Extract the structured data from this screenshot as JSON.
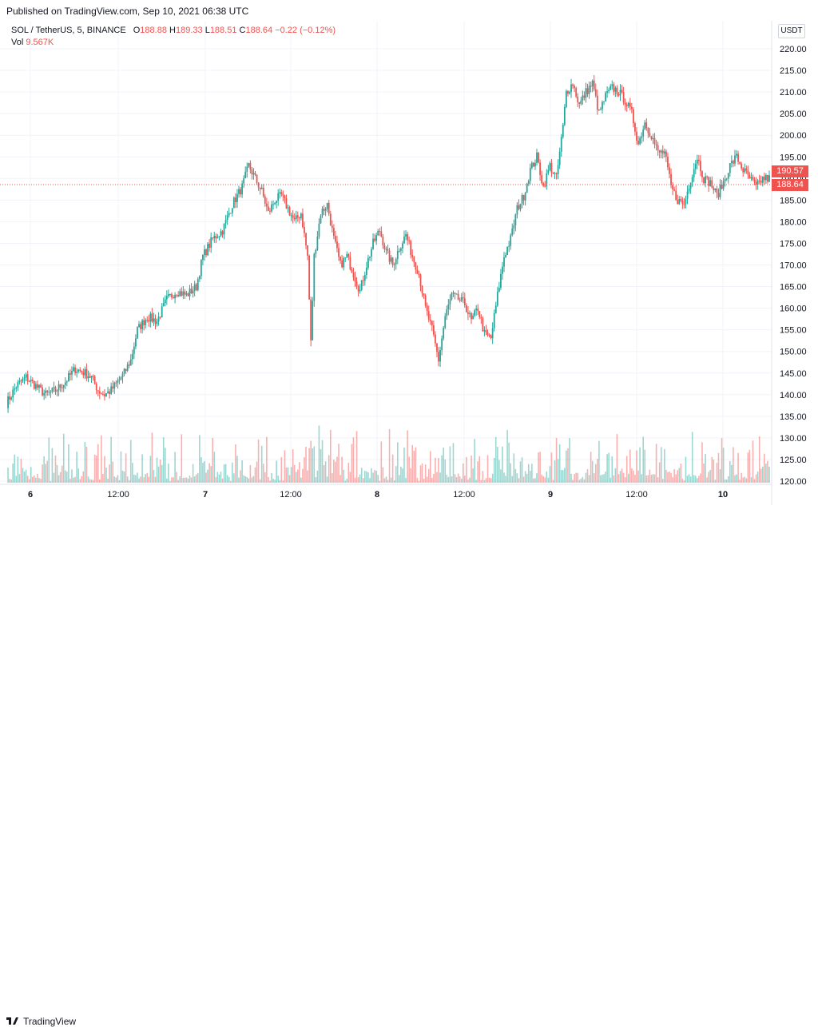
{
  "header": {
    "published": "Published on TradingView.com, Sep 10, 2021 06:38 UTC"
  },
  "legend": {
    "symbol": "SOL / TetherUS, 5, BINANCE",
    "o_label": "O",
    "o_value": "188.88",
    "h_label": "H",
    "h_value": "189.33",
    "l_label": "L",
    "l_value": "188.51",
    "c_label": "C",
    "c_value": "188.64",
    "change": "−0.22 (−0.12%)",
    "vol_label": "Vol",
    "vol_value": "9.567K"
  },
  "currency": "USDT",
  "tags": {
    "last_price": "188.64",
    "line_price": "190.57"
  },
  "brand": "TradingView",
  "colors": {
    "up": "#26a69a",
    "down": "#ef5350",
    "grid": "#f0f3fa",
    "text": "#131722"
  },
  "chart_data": {
    "type": "candlestick",
    "y_ticks": [
      "220.00",
      "215.00",
      "210.00",
      "205.00",
      "200.00",
      "195.00",
      "190.00",
      "185.00",
      "180.00",
      "175.00",
      "170.00",
      "165.00",
      "160.00",
      "155.00",
      "150.00",
      "145.00",
      "140.00",
      "135.00",
      "130.00",
      "125.00",
      "120.00"
    ],
    "ylim": [
      119,
      222
    ],
    "x_ticks": [
      "6",
      "12:00",
      "7",
      "12:00",
      "8",
      "12:00",
      "9",
      "12:00",
      "10"
    ],
    "xlim": [
      "2021-09-05 21:30",
      "2021-09-10 06:38"
    ],
    "close_path": [
      [
        0,
        138
      ],
      [
        6,
        142
      ],
      [
        12,
        144
      ],
      [
        18,
        142
      ],
      [
        24,
        140
      ],
      [
        30,
        141
      ],
      [
        36,
        143
      ],
      [
        42,
        146
      ],
      [
        48,
        145
      ],
      [
        52,
        144
      ],
      [
        56,
        141
      ],
      [
        60,
        140
      ],
      [
        64,
        141
      ],
      [
        68,
        143
      ],
      [
        72,
        145
      ],
      [
        76,
        148
      ],
      [
        80,
        155
      ],
      [
        86,
        158
      ],
      [
        92,
        157
      ],
      [
        98,
        162
      ],
      [
        104,
        164
      ],
      [
        110,
        163
      ],
      [
        116,
        165
      ],
      [
        120,
        172
      ],
      [
        126,
        176
      ],
      [
        132,
        178
      ],
      [
        138,
        184
      ],
      [
        144,
        188
      ],
      [
        148,
        193
      ],
      [
        152,
        190
      ],
      [
        156,
        187
      ],
      [
        160,
        182
      ],
      [
        164,
        185
      ],
      [
        168,
        186
      ],
      [
        172,
        183
      ],
      [
        176,
        180
      ],
      [
        180,
        182
      ],
      [
        184,
        172
      ],
      [
        186,
        152
      ],
      [
        188,
        172
      ],
      [
        192,
        182
      ],
      [
        196,
        184
      ],
      [
        200,
        176
      ],
      [
        204,
        170
      ],
      [
        208,
        172
      ],
      [
        212,
        168
      ],
      [
        216,
        164
      ],
      [
        220,
        170
      ],
      [
        224,
        175
      ],
      [
        228,
        178
      ],
      [
        232,
        173
      ],
      [
        236,
        170
      ],
      [
        240,
        174
      ],
      [
        244,
        177
      ],
      [
        248,
        172
      ],
      [
        252,
        168
      ],
      [
        256,
        160
      ],
      [
        260,
        155
      ],
      [
        264,
        148
      ],
      [
        268,
        158
      ],
      [
        272,
        163
      ],
      [
        276,
        162
      ],
      [
        280,
        161
      ],
      [
        284,
        157
      ],
      [
        288,
        160
      ],
      [
        292,
        154
      ],
      [
        296,
        153
      ],
      [
        300,
        163
      ],
      [
        304,
        172
      ],
      [
        308,
        176
      ],
      [
        312,
        183
      ],
      [
        316,
        186
      ],
      [
        320,
        192
      ],
      [
        324,
        195
      ],
      [
        328,
        188
      ],
      [
        332,
        193
      ],
      [
        336,
        190
      ],
      [
        340,
        202
      ],
      [
        342,
        210
      ],
      [
        346,
        212
      ],
      [
        350,
        207
      ],
      [
        354,
        210
      ],
      [
        358,
        212
      ],
      [
        362,
        205
      ],
      [
        366,
        209
      ],
      [
        370,
        211
      ],
      [
        374,
        210
      ],
      [
        378,
        208
      ],
      [
        382,
        205
      ],
      [
        386,
        198
      ],
      [
        390,
        203
      ],
      [
        394,
        200
      ],
      [
        398,
        196
      ],
      [
        402,
        196
      ],
      [
        406,
        188
      ],
      [
        410,
        185
      ],
      [
        414,
        184
      ],
      [
        418,
        190
      ],
      [
        422,
        195
      ],
      [
        426,
        190
      ],
      [
        430,
        189
      ],
      [
        434,
        186
      ],
      [
        438,
        189
      ],
      [
        442,
        193
      ],
      [
        446,
        195
      ],
      [
        450,
        192
      ],
      [
        454,
        190
      ],
      [
        458,
        188
      ],
      [
        462,
        190
      ],
      [
        466,
        190
      ]
    ],
    "volume_note": "volume histogram along bottom"
  }
}
